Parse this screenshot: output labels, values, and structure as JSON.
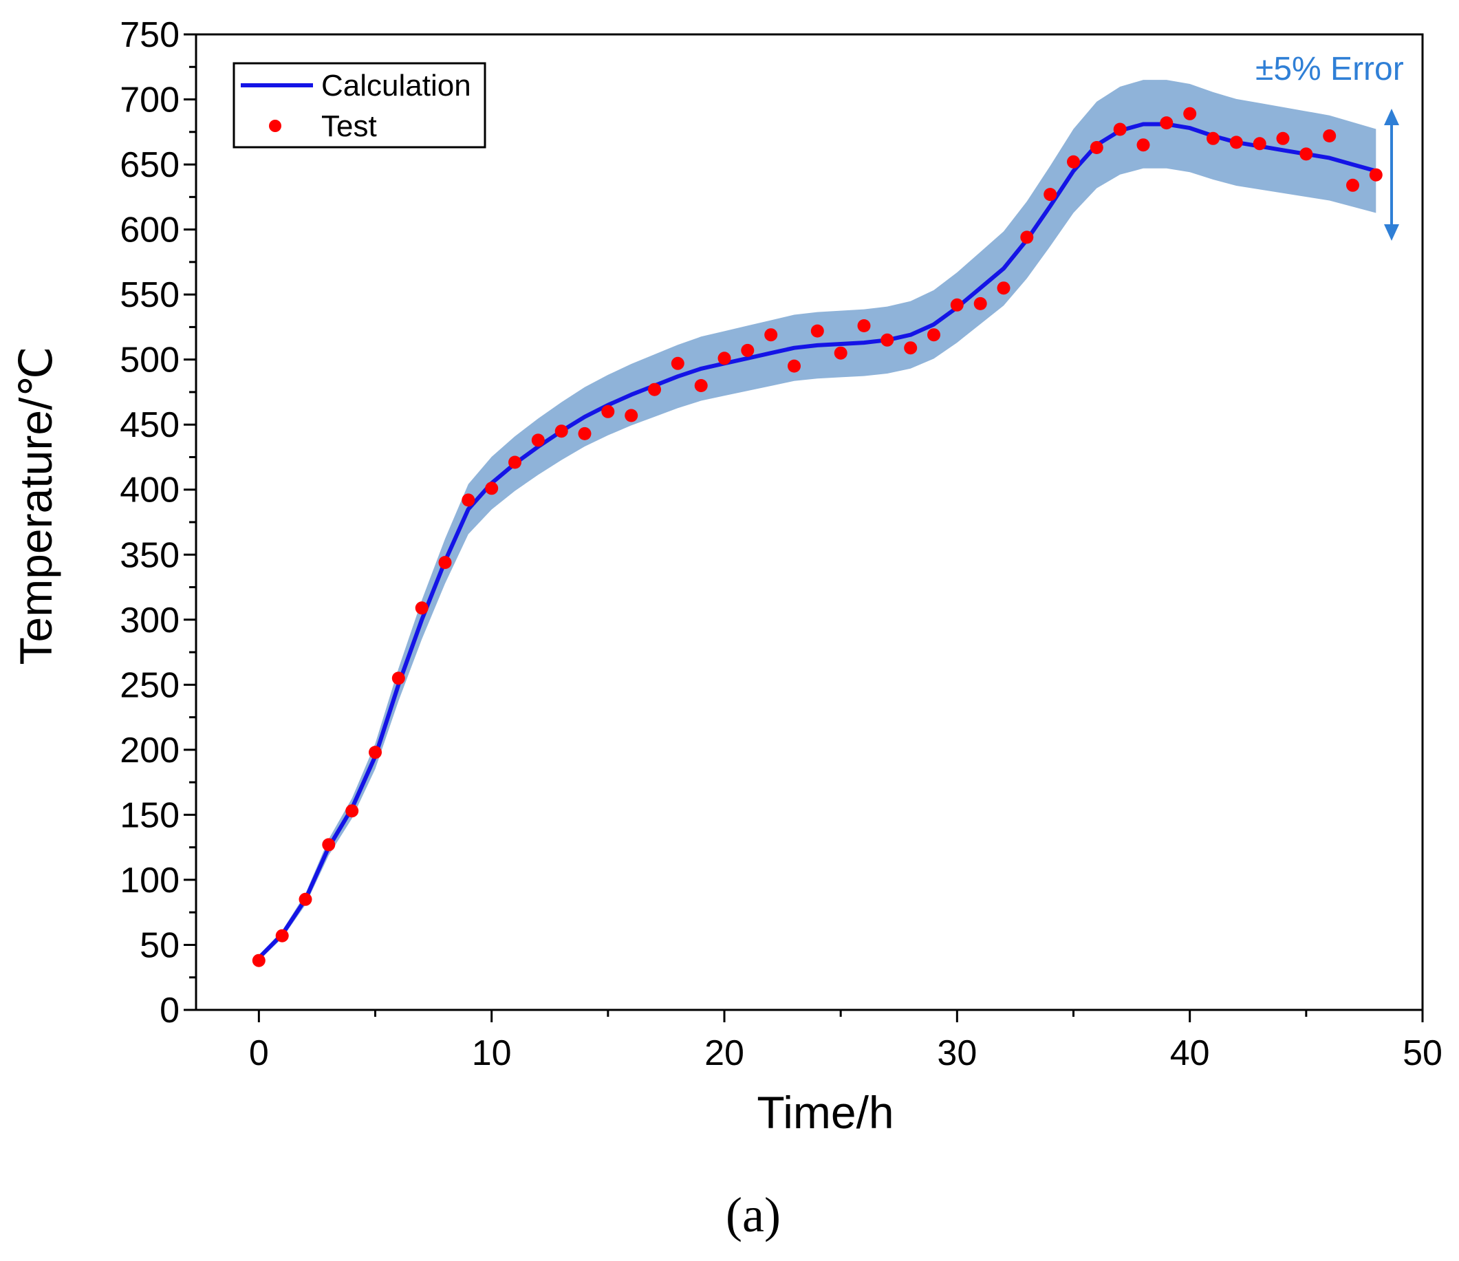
{
  "chart_data": {
    "type": "line",
    "title": "",
    "xlabel": "Time/h",
    "ylabel": "Temperature/℃",
    "xlim": [
      -2.7,
      50
    ],
    "ylim": [
      0,
      750
    ],
    "xticks": [
      0,
      10,
      20,
      30,
      40,
      50
    ],
    "yticks": [
      0,
      50,
      100,
      150,
      200,
      250,
      300,
      350,
      400,
      450,
      500,
      550,
      600,
      650,
      700,
      750
    ],
    "legend_position": "top-left",
    "band_label": "±5% Error",
    "band_color": "#8fb3d9",
    "series": [
      {
        "name": "Calculation",
        "kind": "line",
        "color": "#1414e6",
        "x": [
          0,
          1,
          2,
          3,
          4,
          5,
          6,
          7,
          8,
          9,
          10,
          11,
          12,
          13,
          14,
          15,
          16,
          17,
          18,
          19,
          20,
          21,
          22,
          23,
          24,
          25,
          26,
          27,
          28,
          29,
          30,
          31,
          32,
          33,
          34,
          35,
          36,
          37,
          38,
          39,
          40,
          41,
          42,
          43,
          44,
          45,
          46,
          47,
          48
        ],
        "y": [
          40,
          58,
          85,
          125,
          155,
          195,
          250,
          300,
          345,
          385,
          405,
          420,
          433,
          445,
          456,
          465,
          473,
          480,
          487,
          493,
          497,
          501,
          505,
          509,
          511,
          512,
          513,
          515,
          519,
          527,
          540,
          555,
          570,
          592,
          618,
          645,
          665,
          676,
          681,
          681,
          678,
          672,
          667,
          664,
          661,
          658,
          655,
          650,
          645
        ],
        "band_fraction": 0.05
      },
      {
        "name": "Test",
        "kind": "scatter",
        "color": "#ff0000",
        "x": [
          0,
          1,
          2,
          3,
          4,
          5,
          6,
          7,
          8,
          9,
          10,
          11,
          12,
          13,
          14,
          15,
          16,
          17,
          18,
          19,
          20,
          21,
          22,
          23,
          24,
          25,
          26,
          27,
          28,
          29,
          30,
          31,
          32,
          33,
          34,
          35,
          36,
          37,
          38,
          39,
          40,
          41,
          42,
          43,
          44,
          45,
          46,
          47,
          48
        ],
        "y": [
          38,
          57,
          85,
          127,
          153,
          198,
          255,
          309,
          344,
          392,
          401,
          421,
          438,
          445,
          443,
          460,
          457,
          477,
          497,
          480,
          501,
          507,
          519,
          495,
          522,
          505,
          526,
          515,
          509,
          519,
          542,
          543,
          555,
          594,
          627,
          652,
          663,
          677,
          665,
          682,
          689,
          670,
          667,
          666,
          670,
          658,
          672,
          634,
          642
        ]
      }
    ],
    "panel_label": "(a)"
  }
}
